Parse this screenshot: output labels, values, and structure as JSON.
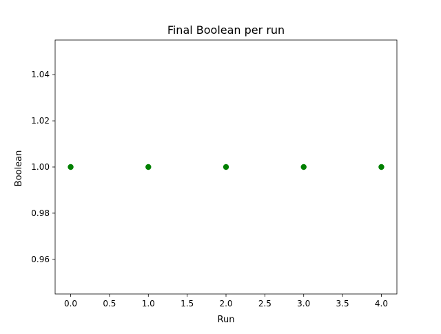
{
  "chart_data": {
    "type": "scatter",
    "title": "Final Boolean per run",
    "xlabel": "Run",
    "ylabel": "Boolean",
    "x": [
      0,
      1,
      2,
      3,
      4
    ],
    "y": [
      1,
      1,
      1,
      1,
      1
    ],
    "xlim": [
      -0.2,
      4.2
    ],
    "ylim": [
      0.945,
      1.055
    ],
    "xticks": [
      "0.0",
      "0.5",
      "1.0",
      "1.5",
      "2.0",
      "2.5",
      "3.0",
      "3.5",
      "4.0"
    ],
    "yticks": [
      "0.96",
      "0.98",
      "1.00",
      "1.02",
      "1.04"
    ],
    "marker_color": "#008000",
    "grid": false,
    "legend": "none"
  }
}
